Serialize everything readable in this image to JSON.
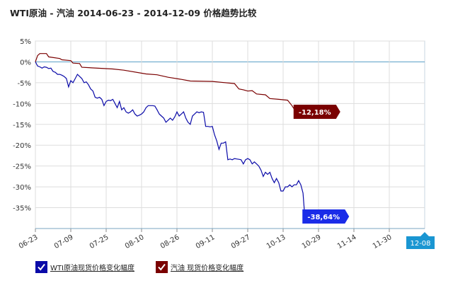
{
  "title": "WTI原油 - 汽油 2014-06-23 - 2014-12-09 价格趋势比较",
  "chart_data": {
    "type": "line",
    "title": "WTI原油 - 汽油 2014-06-23 - 2014-12-09 价格趋势比较",
    "x_ticks": [
      "06-23",
      "07-09",
      "07-25",
      "08-10",
      "08-26",
      "09-11",
      "09-27",
      "10-13",
      "10-29",
      "11-14",
      "11-30"
    ],
    "x_end_label": "12-08",
    "x_range": [
      "2014-06-23",
      "2014-12-08"
    ],
    "y_ticks": [
      "5%",
      "0%",
      "-5%",
      "-10%",
      "-15%",
      "-20%",
      "-25%",
      "-30%",
      "-35%"
    ],
    "ylim": [
      -40,
      5
    ],
    "grid": true,
    "legend_position": "bottom-left",
    "series": [
      {
        "name": "WTI原油现货价格变化幅度",
        "color": "#0a0aa8",
        "end_label": "-38,64%",
        "points": [
          [
            0,
            0
          ],
          [
            1,
            -1
          ],
          [
            2,
            -1.2
          ],
          [
            3,
            -1.5
          ],
          [
            4,
            -1.2
          ],
          [
            5,
            -1.3
          ],
          [
            6,
            -1.6
          ],
          [
            7,
            -1.5
          ],
          [
            8,
            -2.3
          ],
          [
            9,
            -2.5
          ],
          [
            10,
            -3
          ],
          [
            11,
            -3
          ],
          [
            12,
            -3.2
          ],
          [
            13,
            -3.5
          ],
          [
            14,
            -4
          ],
          [
            15,
            -6
          ],
          [
            16,
            -4.5
          ],
          [
            17,
            -5
          ],
          [
            18,
            -4
          ],
          [
            19,
            -3
          ],
          [
            20,
            -3.5
          ],
          [
            21,
            -4
          ],
          [
            22,
            -5
          ],
          [
            23,
            -4.8
          ],
          [
            24,
            -5.5
          ],
          [
            25,
            -6.5
          ],
          [
            26,
            -7
          ],
          [
            27,
            -8.5
          ],
          [
            28,
            -8.7
          ],
          [
            29,
            -8.5
          ],
          [
            30,
            -9
          ],
          [
            31,
            -10.5
          ],
          [
            32,
            -9.5
          ],
          [
            33,
            -9.2
          ],
          [
            34,
            -9.3
          ],
          [
            35,
            -9
          ],
          [
            36,
            -10
          ],
          [
            37,
            -11
          ],
          [
            38,
            -9.5
          ],
          [
            39,
            -11.5
          ],
          [
            40,
            -11
          ],
          [
            41,
            -12
          ],
          [
            42,
            -12.3
          ],
          [
            43,
            -12
          ],
          [
            44,
            -11.5
          ],
          [
            45,
            -12.5
          ],
          [
            46,
            -13
          ],
          [
            47,
            -12.8
          ],
          [
            48,
            -12.5
          ],
          [
            49,
            -12
          ],
          [
            50,
            -11
          ],
          [
            51,
            -10.5
          ],
          [
            52,
            -10.5
          ],
          [
            53,
            -10.5
          ],
          [
            54,
            -10.6
          ],
          [
            55,
            -11.5
          ],
          [
            56,
            -12.5
          ],
          [
            57,
            -13
          ],
          [
            58,
            -13.5
          ],
          [
            59,
            -14.5
          ],
          [
            60,
            -14
          ],
          [
            61,
            -13.5
          ],
          [
            62,
            -14
          ],
          [
            63,
            -13.2
          ],
          [
            64,
            -12
          ],
          [
            65,
            -13
          ],
          [
            66,
            -12.5
          ],
          [
            67,
            -12
          ],
          [
            68,
            -13.5
          ],
          [
            69,
            -14.5
          ],
          [
            70,
            -15
          ],
          [
            71,
            -13
          ],
          [
            72,
            -12.5
          ],
          [
            73,
            -12
          ],
          [
            74,
            -12.2
          ],
          [
            75,
            -12
          ],
          [
            76,
            -12.1
          ],
          [
            77,
            -15.5
          ],
          [
            78,
            -15.5
          ],
          [
            79,
            -15.6
          ],
          [
            80,
            -15.5
          ],
          [
            81,
            -17.5
          ],
          [
            82,
            -19
          ],
          [
            83,
            -21
          ],
          [
            84,
            -19.5
          ],
          [
            85,
            -19.5
          ],
          [
            86,
            -19.2
          ],
          [
            87,
            -23.5
          ],
          [
            88,
            -23.3
          ],
          [
            89,
            -23.5
          ],
          [
            90,
            -23.2
          ],
          [
            91,
            -23.3
          ],
          [
            92,
            -23.4
          ],
          [
            93,
            -23.5
          ],
          [
            94,
            -24.5
          ],
          [
            95,
            -23.5
          ],
          [
            96,
            -23.2
          ],
          [
            97,
            -23.5
          ],
          [
            98,
            -24.5
          ],
          [
            99,
            -24
          ],
          [
            100,
            -24.5
          ],
          [
            101,
            -25
          ],
          [
            102,
            -26
          ],
          [
            103,
            -27.5
          ],
          [
            104,
            -26.5
          ],
          [
            105,
            -27
          ],
          [
            106,
            -26.5
          ],
          [
            107,
            -28
          ],
          [
            108,
            -29
          ],
          [
            109,
            -28
          ],
          [
            110,
            -29
          ],
          [
            111,
            -31
          ],
          [
            112,
            -31
          ],
          [
            113,
            -30
          ],
          [
            114,
            -30
          ],
          [
            115,
            -29.5
          ],
          [
            116,
            -30
          ],
          [
            117,
            -29.5
          ],
          [
            118,
            -29.5
          ],
          [
            119,
            -28.5
          ],
          [
            120,
            -29.5
          ],
          [
            121,
            -31.5
          ],
          [
            122,
            -38.64
          ]
        ]
      },
      {
        "name": "汽油 现货价格变化幅度",
        "color": "#7a0000",
        "end_label": "-12,18%",
        "points": [
          [
            0,
            0
          ],
          [
            1,
            1.5
          ],
          [
            2,
            2
          ],
          [
            5,
            2
          ],
          [
            6,
            1.2
          ],
          [
            11,
            0.8
          ],
          [
            12,
            0.5
          ],
          [
            16,
            0.3
          ],
          [
            17,
            -0.3
          ],
          [
            20,
            -0.4
          ],
          [
            21,
            -1.3
          ],
          [
            35,
            -1.7
          ],
          [
            40,
            -2
          ],
          [
            50,
            -2.9
          ],
          [
            55,
            -3.1
          ],
          [
            60,
            -3.7
          ],
          [
            66,
            -4.2
          ],
          [
            70,
            -4.6
          ],
          [
            80,
            -4.7
          ],
          [
            84,
            -4.9
          ],
          [
            88,
            -5.1
          ],
          [
            90,
            -5.2
          ],
          [
            92,
            -6.5
          ],
          [
            94,
            -6.7
          ],
          [
            96,
            -7.0
          ],
          [
            98,
            -6.9
          ],
          [
            100,
            -7.7
          ],
          [
            104,
            -7.9
          ],
          [
            106,
            -8.8
          ],
          [
            110,
            -9.0
          ],
          [
            114,
            -9.2
          ],
          [
            116,
            -10.5
          ],
          [
            118,
            -12.18
          ]
        ]
      }
    ]
  }
}
